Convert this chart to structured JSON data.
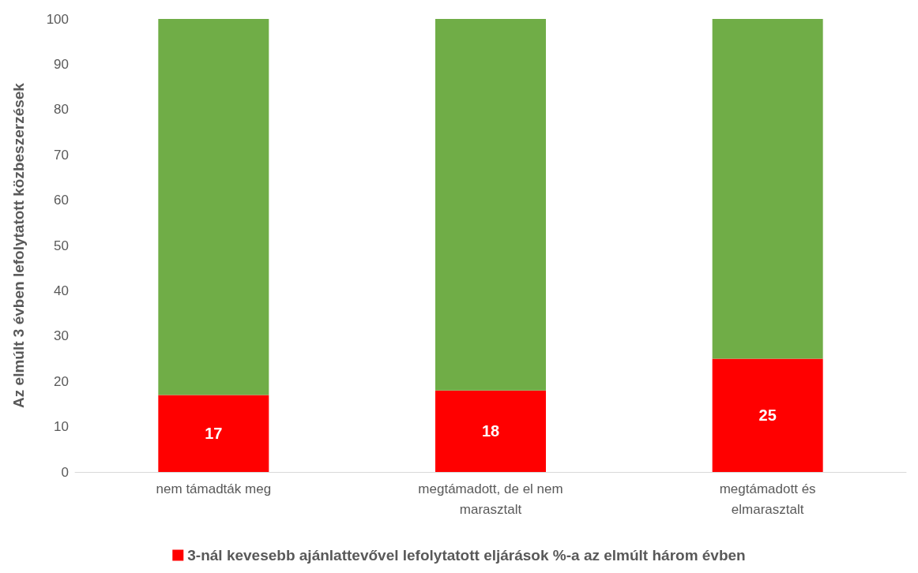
{
  "chart_data": {
    "type": "bar",
    "stacked": true,
    "ylabel": "Az elmúlt 3 évben lefolytatott közbeszerzések",
    "categories": [
      "nem támadták meg",
      "megtámadott, de el nem marasztalt",
      "megtámadott és elmarasztalt"
    ],
    "series": [
      {
        "name": "3-nál kevesebb ajánlattevővel lefolytatott eljárások %-a az elmúlt három évben",
        "color": "#ff0000",
        "values": [
          17,
          18,
          25
        ],
        "value_labels": [
          "17",
          "18",
          "25"
        ]
      },
      {
        "color": "#70ad47",
        "values": [
          83,
          82,
          75
        ]
      }
    ],
    "ylim": [
      0,
      100
    ],
    "yticks": [
      0,
      10,
      20,
      30,
      40,
      50,
      60,
      70,
      80,
      90,
      100
    ],
    "grid": false,
    "legend": "bottom"
  }
}
